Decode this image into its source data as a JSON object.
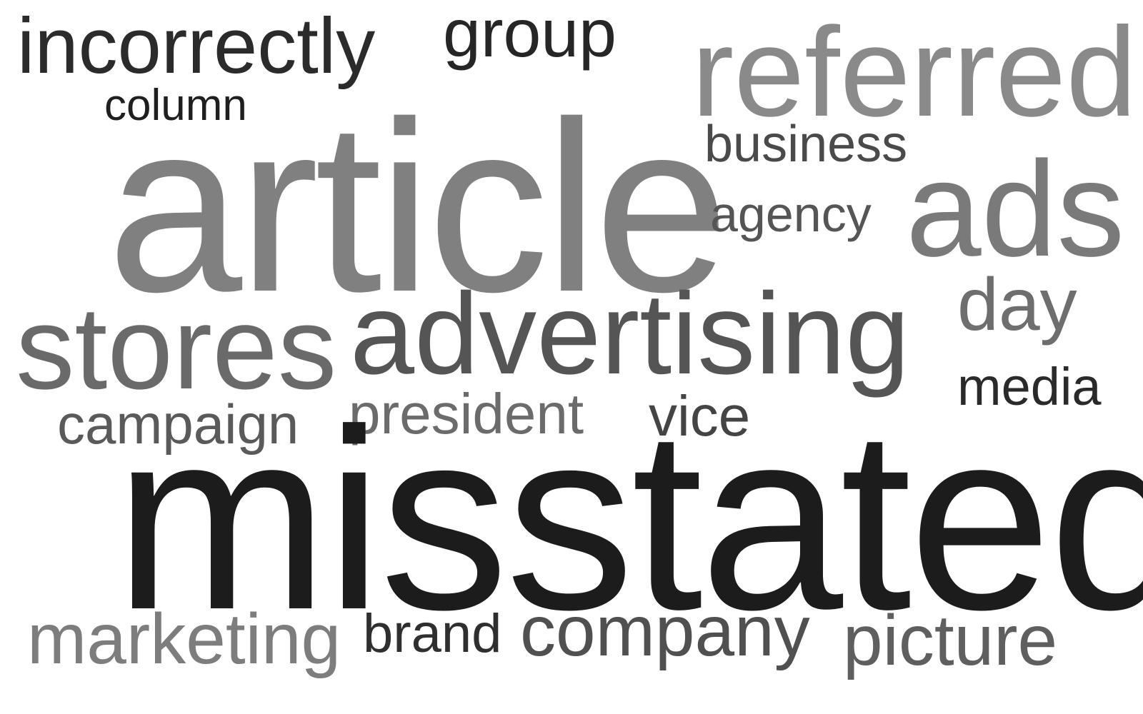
{
  "cloud": {
    "words": {
      "incorrectly": "incorrectly",
      "group": "group",
      "referred": "referred",
      "column": "column",
      "business": "business",
      "article": "article",
      "agency": "agency",
      "ads": "ads",
      "stores": "stores",
      "advertising": "advertising",
      "day": "day",
      "media": "media",
      "campaign": "campaign",
      "president": "president",
      "vice": "vice",
      "misstated": "misstated",
      "marketing": "marketing",
      "brand": "brand",
      "company": "company",
      "picture": "picture"
    },
    "colors": {
      "darkest": "#1c1c1c",
      "dark": "#2b2b2b",
      "medium": "#555555",
      "light": "#808080",
      "lightest": "#8a8a8a",
      "background": "#ffffff"
    }
  }
}
